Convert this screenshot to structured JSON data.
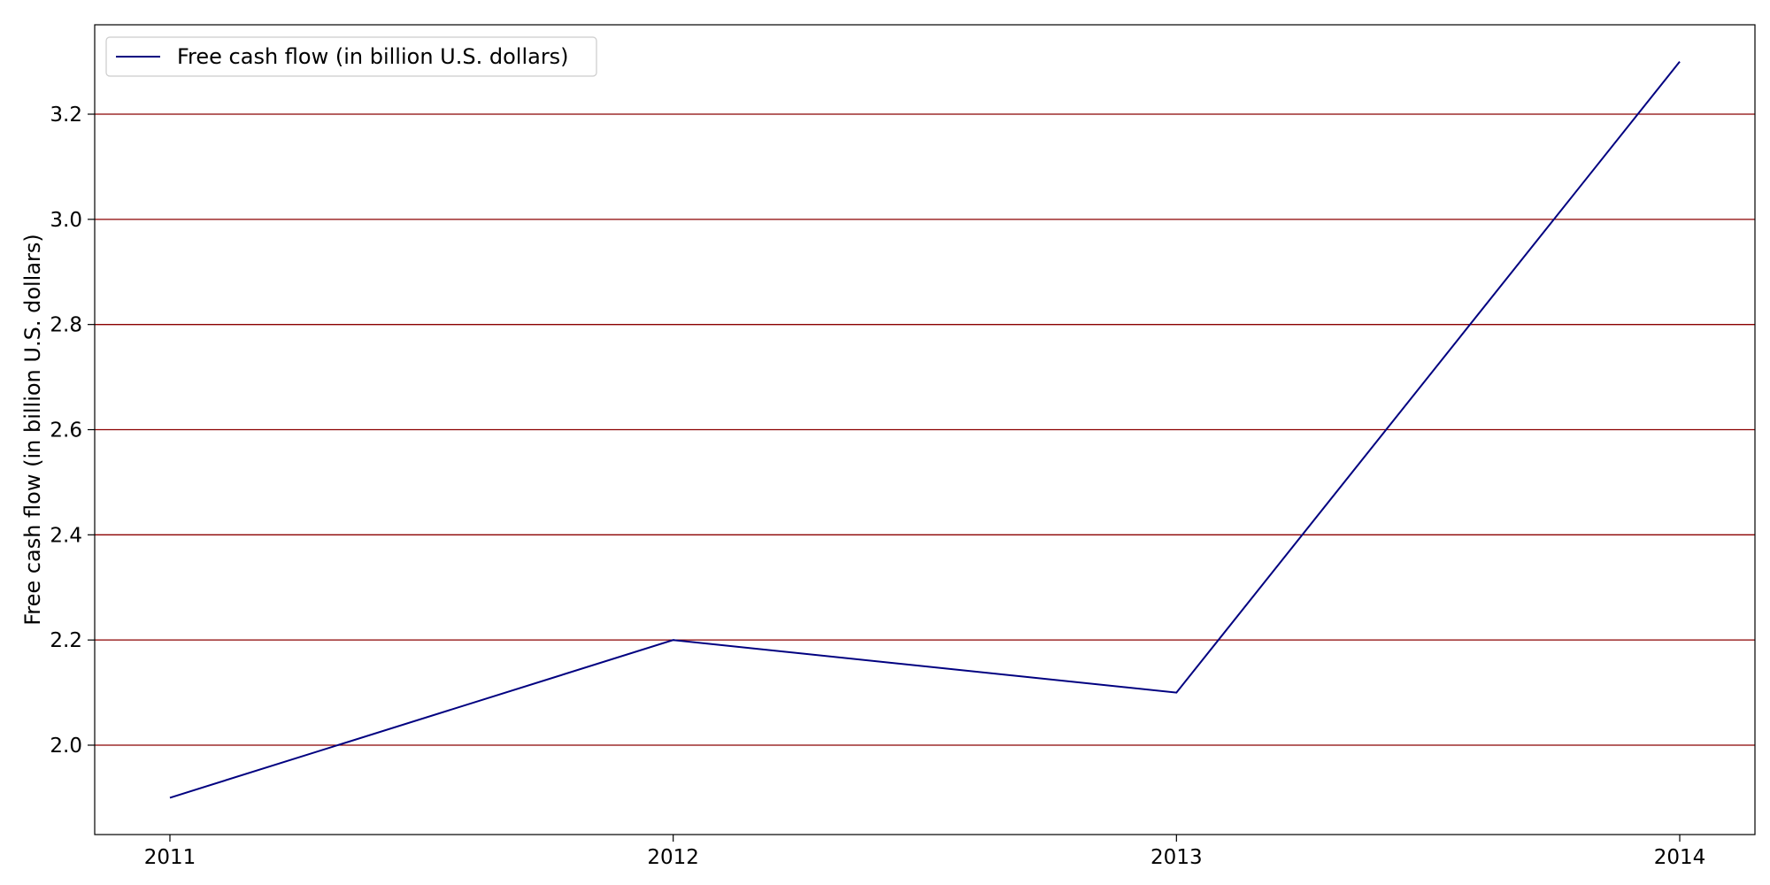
{
  "chart_data": {
    "type": "line",
    "title": "",
    "xlabel": "",
    "ylabel": "Free cash flow (in billion U.S. dollars)",
    "x": [
      "2011",
      "2012",
      "2013",
      "2014"
    ],
    "series": [
      {
        "name": "Free cash flow (in billion U.S. dollars)",
        "values": [
          1.9,
          2.2,
          2.1,
          3.3
        ],
        "color": "#000080"
      }
    ],
    "ylim": [
      1.83,
      3.37
    ],
    "yticks": [
      2.0,
      2.2,
      2.4,
      2.6,
      2.8,
      3.0,
      3.2
    ],
    "ytick_labels": [
      "2.0",
      "2.2",
      "2.4",
      "2.6",
      "2.8",
      "3.0",
      "3.2"
    ],
    "grid": {
      "axis": "y",
      "color": "#8b0000"
    },
    "legend": "upper-left"
  }
}
